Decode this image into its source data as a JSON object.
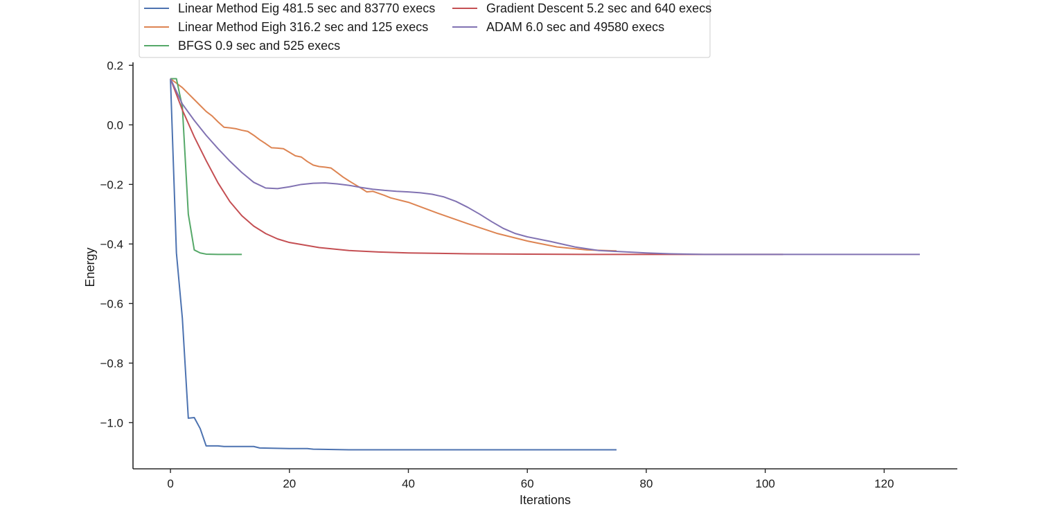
{
  "chart_data": {
    "type": "line",
    "xlabel": "Iterations",
    "ylabel": "Energy",
    "xlim": [
      -6.3,
      132.3
    ],
    "ylim": [
      -1.155,
      0.21
    ],
    "xticks": [
      0,
      20,
      40,
      60,
      80,
      100,
      120
    ],
    "yticks": [
      0.2,
      0.0,
      -0.2,
      -0.4,
      -0.6,
      -0.8,
      -1.0
    ],
    "yticklabels": [
      "0.2",
      "0.0",
      "−0.2",
      "−0.4",
      "−0.6",
      "−0.8",
      "−1.0"
    ],
    "grid": false,
    "legend_position": "top-left",
    "series": [
      {
        "name": "Linear Method Eig 481.5 sec and 83770 execs",
        "color": "#4c72b0",
        "x": [
          0,
          1,
          2,
          3,
          4,
          5,
          6,
          7,
          8,
          9,
          10,
          14,
          15,
          20,
          23,
          24,
          30,
          40,
          60,
          75
        ],
        "y": [
          0.155,
          -0.43,
          -0.65,
          -0.985,
          -0.983,
          -1.02,
          -1.078,
          -1.078,
          -1.078,
          -1.08,
          -1.08,
          -1.08,
          -1.085,
          -1.087,
          -1.087,
          -1.089,
          -1.091,
          -1.091,
          -1.091,
          -1.091
        ]
      },
      {
        "name": "Linear Method Eigh 316.2 sec and 125 execs",
        "color": "#dd8452",
        "x": [
          0,
          1,
          2,
          3,
          4,
          5,
          6,
          7,
          8,
          9,
          10,
          11,
          12,
          13,
          14,
          15,
          16,
          17,
          18,
          19,
          20,
          21,
          22,
          23,
          24,
          25,
          26,
          27,
          28,
          29,
          30,
          31,
          32,
          33,
          34,
          35,
          36,
          37,
          38,
          39,
          40,
          45,
          50,
          55,
          60,
          65,
          70,
          75
        ],
        "y": [
          0.155,
          0.14,
          0.125,
          0.105,
          0.085,
          0.065,
          0.045,
          0.03,
          0.01,
          -0.008,
          -0.01,
          -0.013,
          -0.018,
          -0.022,
          -0.035,
          -0.05,
          -0.063,
          -0.077,
          -0.078,
          -0.08,
          -0.092,
          -0.104,
          -0.108,
          -0.123,
          -0.135,
          -0.14,
          -0.142,
          -0.145,
          -0.16,
          -0.175,
          -0.188,
          -0.2,
          -0.212,
          -0.225,
          -0.223,
          -0.23,
          -0.237,
          -0.245,
          -0.25,
          -0.255,
          -0.26,
          -0.297,
          -0.332,
          -0.365,
          -0.39,
          -0.41,
          -0.42,
          -0.423
        ]
      },
      {
        "name": "BFGS 0.9 sec and 525 execs",
        "color": "#55a868",
        "x": [
          0,
          1,
          2,
          3,
          4,
          5,
          6,
          8,
          10,
          12
        ],
        "y": [
          0.155,
          0.155,
          0.06,
          -0.3,
          -0.42,
          -0.43,
          -0.434,
          -0.435,
          -0.435,
          -0.435
        ]
      },
      {
        "name": "Gradient Descent 5.2 sec and 640 execs",
        "color": "#c44e52",
        "x": [
          0,
          2,
          4,
          6,
          8,
          10,
          12,
          14,
          16,
          18,
          20,
          25,
          30,
          35,
          40,
          50,
          60,
          70,
          80,
          90,
          103
        ],
        "y": [
          0.155,
          0.05,
          -0.04,
          -0.12,
          -0.195,
          -0.258,
          -0.305,
          -0.34,
          -0.365,
          -0.383,
          -0.395,
          -0.412,
          -0.422,
          -0.427,
          -0.43,
          -0.433,
          -0.434,
          -0.435,
          -0.435,
          -0.435,
          -0.435
        ]
      },
      {
        "name": "ADAM 6.0 sec and 49580 execs",
        "color": "#8172b2",
        "x": [
          0,
          2,
          4,
          6,
          8,
          10,
          12,
          14,
          16,
          18,
          20,
          22,
          24,
          26,
          28,
          30,
          32,
          34,
          36,
          38,
          40,
          42,
          44,
          46,
          48,
          50,
          52,
          54,
          56,
          58,
          60,
          64,
          68,
          72,
          76,
          80,
          84,
          90,
          100,
          110,
          120,
          126
        ],
        "y": [
          0.155,
          0.07,
          0.015,
          -0.035,
          -0.08,
          -0.122,
          -0.16,
          -0.193,
          -0.212,
          -0.214,
          -0.208,
          -0.2,
          -0.196,
          -0.195,
          -0.198,
          -0.203,
          -0.21,
          -0.216,
          -0.22,
          -0.223,
          -0.225,
          -0.228,
          -0.233,
          -0.242,
          -0.257,
          -0.277,
          -0.3,
          -0.325,
          -0.348,
          -0.365,
          -0.376,
          -0.392,
          -0.41,
          -0.422,
          -0.426,
          -0.43,
          -0.433,
          -0.435,
          -0.435,
          -0.435,
          -0.435,
          -0.435
        ]
      }
    ]
  }
}
